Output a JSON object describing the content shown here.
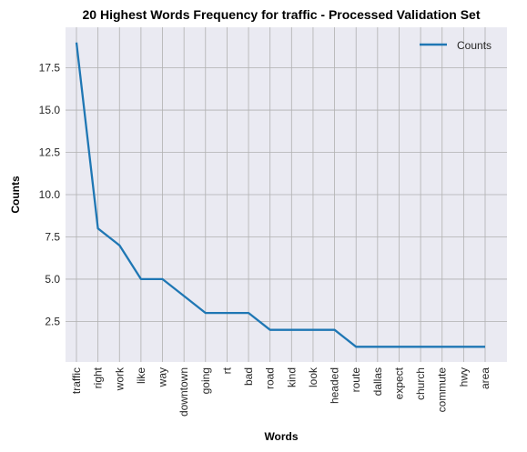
{
  "chart_data": {
    "type": "line",
    "title": "20 Highest Words Frequency for traffic - Processed Validation Set",
    "xlabel": "Words",
    "ylabel": "Counts",
    "categories": [
      "traffic",
      "right",
      "work",
      "like",
      "way",
      "downtown",
      "going",
      "rt",
      "bad",
      "road",
      "kind",
      "look",
      "headed",
      "route",
      "dallas",
      "expect",
      "church",
      "commute",
      "hwy",
      "area"
    ],
    "series": [
      {
        "name": "Counts",
        "values": [
          19,
          8,
          7,
          5,
          5,
          4,
          3,
          3,
          3,
          2,
          2,
          2,
          2,
          1,
          1,
          1,
          1,
          1,
          1,
          1
        ]
      }
    ],
    "yticks": [
      2.5,
      5.0,
      7.5,
      10.0,
      12.5,
      15.0,
      17.5
    ],
    "ytick_labels": [
      "2.5",
      "5.0",
      "7.5",
      "10.0",
      "12.5",
      "15.0",
      "17.5"
    ],
    "ylim": [
      0.1,
      19.9
    ],
    "grid": true,
    "legend": "top-right",
    "colors": {
      "line": "#1f77b4",
      "plot_bg": "#eaeaf2",
      "grid": "#b0b0b0"
    }
  }
}
